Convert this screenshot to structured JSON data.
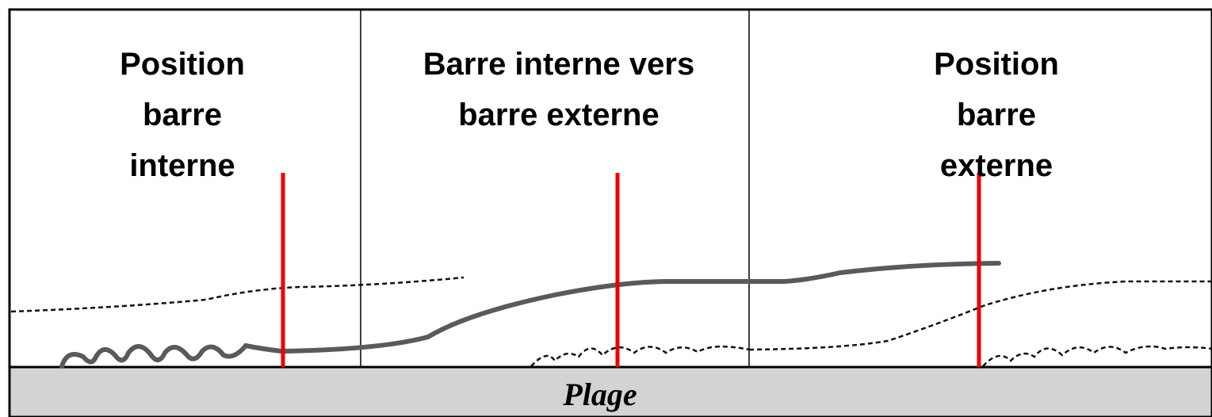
{
  "panels": [
    {
      "label": [
        "Position",
        "barre",
        "interne"
      ]
    },
    {
      "label": [
        "Barre interne vers",
        "barre externe"
      ]
    },
    {
      "label": [
        "Position",
        "barre",
        "externe"
      ]
    }
  ],
  "footer": {
    "label": "Plage"
  }
}
